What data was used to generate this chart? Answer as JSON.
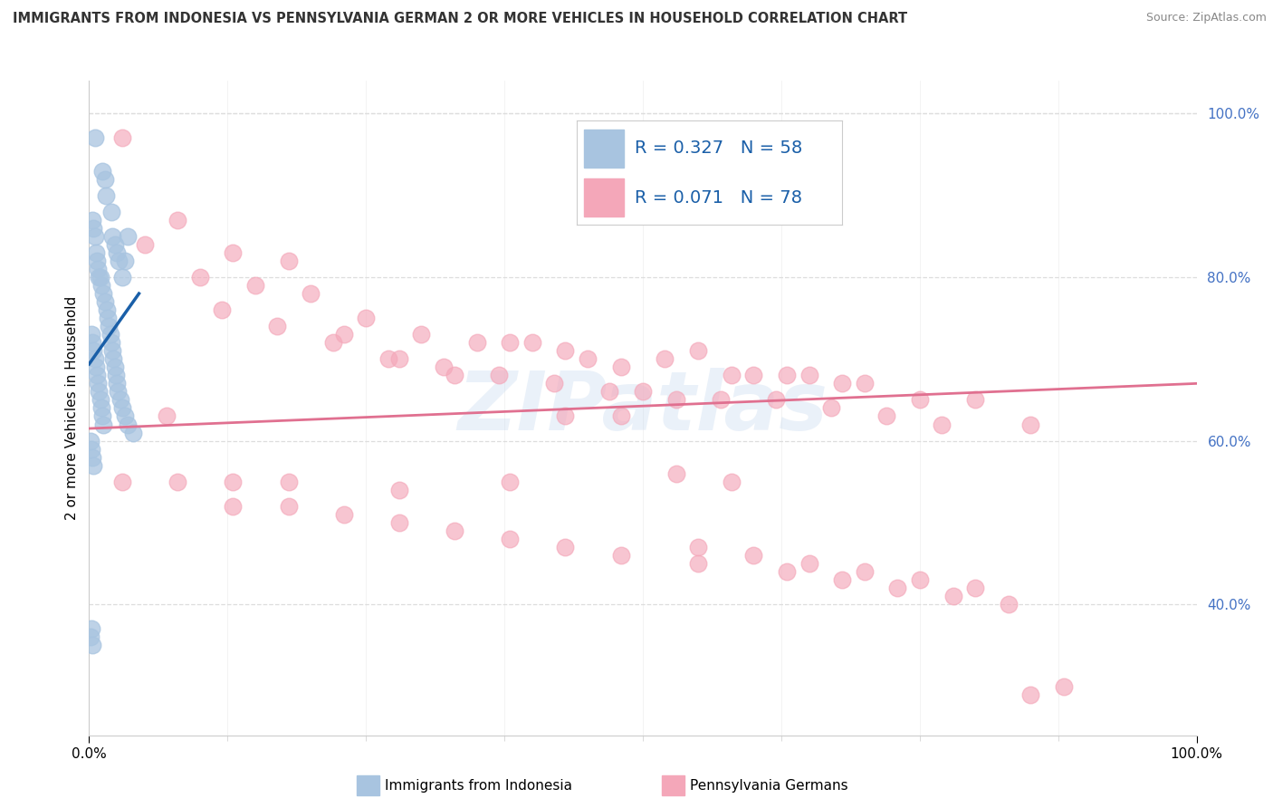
{
  "title": "IMMIGRANTS FROM INDONESIA VS PENNSYLVANIA GERMAN 2 OR MORE VEHICLES IN HOUSEHOLD CORRELATION CHART",
  "source": "Source: ZipAtlas.com",
  "ylabel": "2 or more Vehicles in Household",
  "legend_blue_r": "0.327",
  "legend_blue_n": "58",
  "legend_pink_r": "0.071",
  "legend_pink_n": "78",
  "legend_label_blue": "Immigrants from Indonesia",
  "legend_label_pink": "Pennsylvania Germans",
  "blue_color": "#a8c4e0",
  "pink_color": "#f4a7b9",
  "blue_line_color": "#1a5fa8",
  "pink_line_color": "#e07090",
  "right_ytick_color": "#4472c4",
  "watermark": "ZIPatlas",
  "blue_scatter_x": [
    0.5,
    1.2,
    1.4,
    1.5,
    2.0,
    2.1,
    2.3,
    2.5,
    2.7,
    3.0,
    3.2,
    3.5,
    0.3,
    0.4,
    0.5,
    0.6,
    0.7,
    0.8,
    0.9,
    1.0,
    1.1,
    1.3,
    1.4,
    1.6,
    1.7,
    1.8,
    1.9,
    2.0,
    2.1,
    2.2,
    2.3,
    2.4,
    2.5,
    2.6,
    2.8,
    3.0,
    3.2,
    0.2,
    0.3,
    0.4,
    0.5,
    0.6,
    0.7,
    0.8,
    0.9,
    1.0,
    1.1,
    1.2,
    1.3,
    0.1,
    0.2,
    0.3,
    0.4,
    0.2,
    0.1,
    0.3,
    3.5,
    4.0
  ],
  "blue_scatter_y": [
    97,
    93,
    92,
    90,
    88,
    85,
    84,
    83,
    82,
    80,
    82,
    85,
    87,
    86,
    85,
    83,
    82,
    81,
    80,
    80,
    79,
    78,
    77,
    76,
    75,
    74,
    73,
    72,
    71,
    70,
    69,
    68,
    67,
    66,
    65,
    64,
    63,
    73,
    72,
    71,
    70,
    69,
    68,
    67,
    66,
    65,
    64,
    63,
    62,
    60,
    59,
    58,
    57,
    37,
    36,
    35,
    62,
    61
  ],
  "pink_scatter_x": [
    3.0,
    8.0,
    13.0,
    18.0,
    5.0,
    10.0,
    15.0,
    20.0,
    25.0,
    30.0,
    35.0,
    38.0,
    40.0,
    43.0,
    45.0,
    48.0,
    52.0,
    55.0,
    58.0,
    60.0,
    63.0,
    65.0,
    68.0,
    70.0,
    75.0,
    80.0,
    85.0,
    12.0,
    17.0,
    22.0,
    27.0,
    32.0,
    37.0,
    42.0,
    47.0,
    50.0,
    53.0,
    57.0,
    62.0,
    67.0,
    72.0,
    77.0,
    7.0,
    28.0,
    33.0,
    23.0,
    13.0,
    18.0,
    43.0,
    48.0,
    8.0,
    3.0,
    53.0,
    58.0,
    38.0,
    28.0,
    13.0,
    18.0,
    23.0,
    28.0,
    33.0,
    38.0,
    43.0,
    48.0,
    55.0,
    63.0,
    68.0,
    73.0,
    78.0,
    83.0,
    88.0,
    55.0,
    60.0,
    65.0,
    70.0,
    75.0,
    80.0,
    85.0
  ],
  "pink_scatter_y": [
    97,
    87,
    83,
    82,
    84,
    80,
    79,
    78,
    75,
    73,
    72,
    72,
    72,
    71,
    70,
    69,
    70,
    71,
    68,
    68,
    68,
    68,
    67,
    67,
    65,
    65,
    62,
    76,
    74,
    72,
    70,
    69,
    68,
    67,
    66,
    66,
    65,
    65,
    65,
    64,
    63,
    62,
    63,
    70,
    68,
    73,
    55,
    55,
    63,
    63,
    55,
    55,
    56,
    55,
    55,
    54,
    52,
    52,
    51,
    50,
    49,
    48,
    47,
    46,
    45,
    44,
    43,
    42,
    41,
    40,
    30,
    47,
    46,
    45,
    44,
    43,
    42,
    29
  ],
  "xlim": [
    0,
    100
  ],
  "ylim": [
    24,
    104
  ],
  "yticks": [
    40,
    60,
    80,
    100
  ],
  "ytick_labels": [
    "40.0%",
    "60.0%",
    "80.0%",
    "100.0%"
  ],
  "xtick_labels": [
    "0.0%",
    "100.0%"
  ],
  "bg_color": "#ffffff",
  "grid_color": "#dddddd"
}
